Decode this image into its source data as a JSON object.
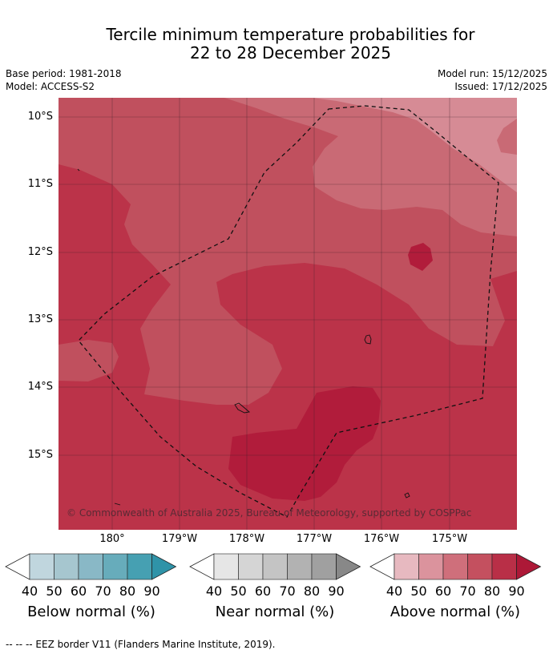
{
  "header": {
    "title_line1": "Tercile minimum temperature probabilities for",
    "title_line2": "22 to 28 December 2025",
    "base_period": "Base period: 1981-2018",
    "model": "Model: ACCESS-S2",
    "model_run": "Model run: 15/12/2025",
    "issued": "Issued: 17/12/2025"
  },
  "map": {
    "lat_labels": [
      "10°S",
      "11°S",
      "12°S",
      "13°S",
      "14°S",
      "15°S"
    ],
    "lon_labels": [
      "180°",
      "179°W",
      "178°W",
      "177°W",
      "176°W",
      "175°W"
    ],
    "copyright": "© Commonwealth of Australia 2025, Bureau of Meteorology, supported by COSPPac",
    "colors": {
      "above_60": "#d68b95",
      "above_70": "#c96a75",
      "above_80": "#c0505e",
      "above_90": "#bb3349",
      "above_max": "#b11c3b"
    }
  },
  "legend": {
    "ticks": [
      "40",
      "50",
      "60",
      "70",
      "80",
      "90"
    ],
    "below": {
      "caption": "Below normal (%)",
      "colors": [
        "#c0d6de",
        "#a6c6cf",
        "#89b8c6",
        "#67acbb",
        "#46a0b2",
        "#2f93a8"
      ]
    },
    "near": {
      "caption": "Near normal (%)",
      "colors": [
        "#e6e6e6",
        "#d5d5d5",
        "#c4c4c4",
        "#b2b2b2",
        "#a0a0a0",
        "#888888"
      ]
    },
    "above": {
      "caption": "Above normal (%)",
      "colors": [
        "#e7b9c0",
        "#db939d",
        "#cf6f7b",
        "#c4505f",
        "#b92f47",
        "#ad1837"
      ]
    }
  },
  "footnote": "--  --  -- EEZ border V11 (Flanders Marine Institute, 2019)."
}
